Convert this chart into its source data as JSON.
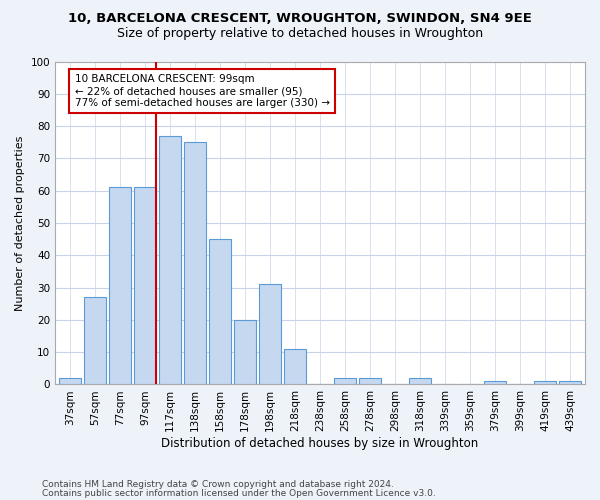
{
  "title1": "10, BARCELONA CRESCENT, WROUGHTON, SWINDON, SN4 9EE",
  "title2": "Size of property relative to detached houses in Wroughton",
  "xlabel": "Distribution of detached houses by size in Wroughton",
  "ylabel": "Number of detached properties",
  "categories": [
    "37sqm",
    "57sqm",
    "77sqm",
    "97sqm",
    "117sqm",
    "138sqm",
    "158sqm",
    "178sqm",
    "198sqm",
    "218sqm",
    "238sqm",
    "258sqm",
    "278sqm",
    "298sqm",
    "318sqm",
    "339sqm",
    "359sqm",
    "379sqm",
    "399sqm",
    "419sqm",
    "439sqm"
  ],
  "values": [
    2,
    27,
    61,
    61,
    77,
    75,
    45,
    20,
    31,
    11,
    0,
    2,
    2,
    0,
    2,
    0,
    0,
    1,
    0,
    1,
    1
  ],
  "bar_color": "#c5d8f0",
  "bar_edge_color": "#5b9bd5",
  "vline_color": "#cc0000",
  "annotation_text": "10 BARCELONA CRESCENT: 99sqm\n← 22% of detached houses are smaller (95)\n77% of semi-detached houses are larger (330) →",
  "annotation_box_color": "#ffffff",
  "annotation_box_edge_color": "#cc0000",
  "ylim": [
    0,
    100
  ],
  "yticks": [
    0,
    10,
    20,
    30,
    40,
    50,
    60,
    70,
    80,
    90,
    100
  ],
  "footer1": "Contains HM Land Registry data © Crown copyright and database right 2024.",
  "footer2": "Contains public sector information licensed under the Open Government Licence v3.0.",
  "bg_color": "#eef2f9",
  "plot_bg_color": "#ffffff",
  "grid_color": "#c8d4e8",
  "title1_fontsize": 9.5,
  "title2_fontsize": 9,
  "xlabel_fontsize": 8.5,
  "ylabel_fontsize": 8,
  "tick_fontsize": 7.5,
  "annotation_fontsize": 7.5,
  "footer_fontsize": 6.5
}
